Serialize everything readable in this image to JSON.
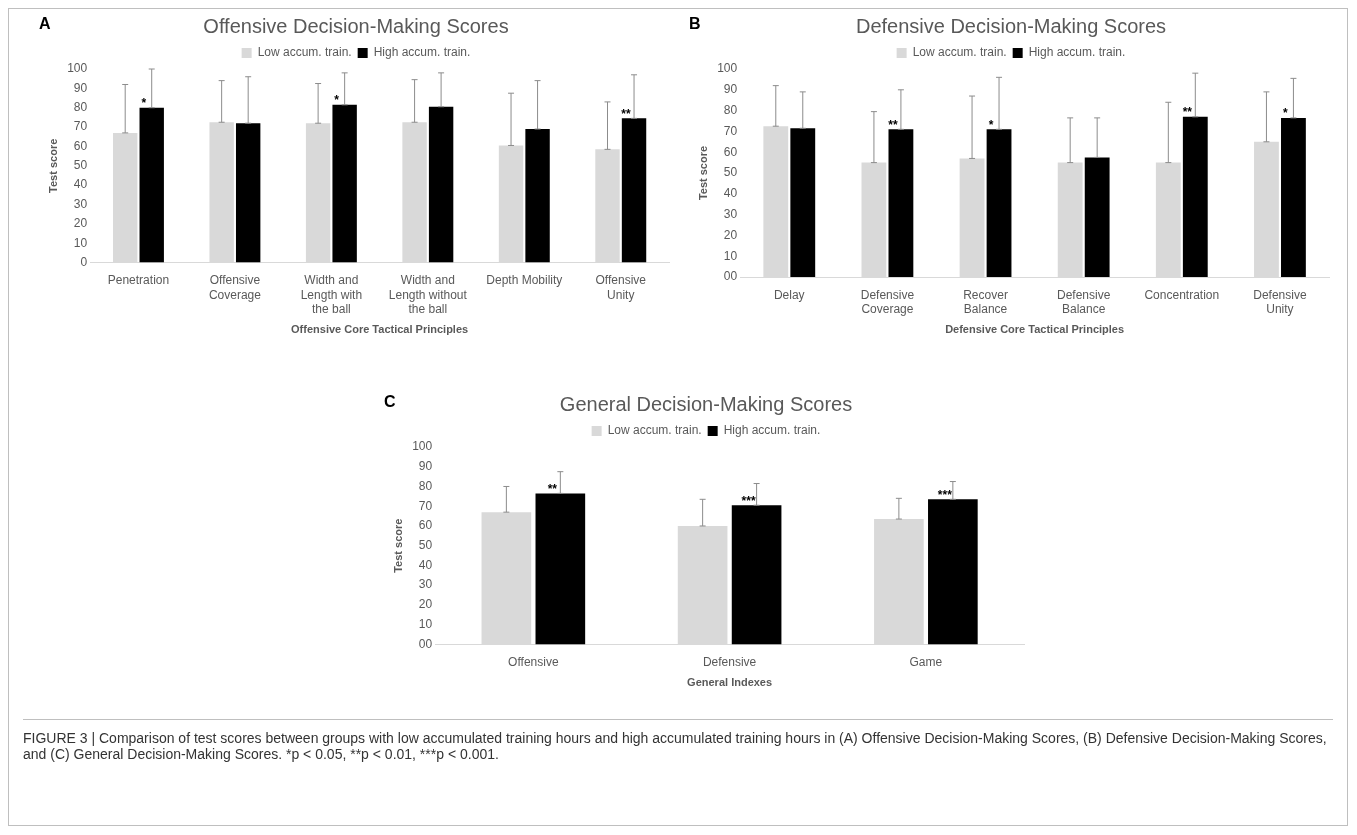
{
  "chart_data": [
    {
      "type": "bar",
      "title": "Offensive Decision-Making Scores",
      "xlabel": "Offensive Core Tactical Principles",
      "ylabel": "Test score",
      "categories": [
        "Penetration",
        "Offensive Coverage",
        "Width and Length with the ball",
        "Width and Length without the ball",
        "Depth Mobility",
        "Offensive Unity"
      ],
      "series": [
        {
          "name": "Low accum. train.",
          "color": "#d9d9d9",
          "values": [
            67,
            72.5,
            72,
            72.5,
            60.5,
            58.5
          ],
          "errors": [
            [
              67,
              92
            ],
            [
              72.5,
              94
            ],
            [
              72,
              92.5
            ],
            [
              72.5,
              94.5
            ],
            [
              60.5,
              87.5
            ],
            [
              58.5,
              83
            ]
          ]
        },
        {
          "name": "High accum. train.",
          "color": "#000000",
          "values": [
            80,
            72,
            81.5,
            80.5,
            69,
            74.5
          ],
          "errors": [
            [
              80,
              100
            ],
            [
              72,
              96
            ],
            [
              81.5,
              98
            ],
            [
              80.5,
              98
            ],
            [
              69,
              94
            ],
            [
              74.5,
              97
            ]
          ]
        }
      ],
      "ylim": [
        0,
        100
      ],
      "yticks": [
        0,
        10,
        20,
        30,
        40,
        50,
        60,
        70,
        80,
        90,
        100
      ],
      "grid": false,
      "legend": "top",
      "annotations": [
        "A",
        {
          "text": "*",
          "x": "Penetration",
          "y": 80
        },
        {
          "text": "*",
          "x": "Width and Length with the ball",
          "y": 81.5
        },
        {
          "text": "**",
          "x": "Offensive Unity",
          "y": 74.5
        }
      ]
    },
    {
      "type": "bar",
      "title": "Defensive Decision-Making Scores",
      "xlabel": "Defensive Core Tactical Principles",
      "ylabel": "Test score",
      "categories": [
        "Delay",
        "Defensive Coverage",
        "Recover Balance",
        "Defensive Balance",
        "Concentration",
        "Defensive Unity"
      ],
      "series": [
        {
          "name": "Low accum. train.",
          "color": "#d9d9d9",
          "values": [
            72.5,
            55,
            57,
            55,
            55,
            65
          ],
          "errors": [
            [
              72.5,
              92
            ],
            [
              55,
              79.5
            ],
            [
              57,
              87
            ],
            [
              55,
              76.5
            ],
            [
              55,
              84
            ],
            [
              65,
              89
            ]
          ]
        },
        {
          "name": "High accum. train.",
          "color": "#000000",
          "values": [
            71.5,
            71,
            71,
            57.5,
            77,
            76.5
          ],
          "errors": [
            [
              71.5,
              89
            ],
            [
              71,
              90
            ],
            [
              71,
              96
            ],
            [
              57.5,
              76.5
            ],
            [
              77,
              98
            ],
            [
              76.5,
              95.5
            ]
          ]
        }
      ],
      "ylim": [
        0,
        100
      ],
      "yticks": [
        {
          "value": 0,
          "label": "00"
        },
        10,
        20,
        30,
        40,
        50,
        60,
        70,
        80,
        90,
        100
      ],
      "grid": false,
      "legend": "top",
      "annotations": [
        "B",
        {
          "text": "**",
          "x": "Defensive Coverage",
          "y": 71
        },
        {
          "text": "*",
          "x": "Recover Balance",
          "y": 71
        },
        {
          "text": "**",
          "x": "Concentration",
          "y": 77
        },
        {
          "text": "*",
          "x": "Defensive Unity",
          "y": 76.5
        }
      ]
    },
    {
      "type": "bar",
      "title": "General Decision-Making Scores",
      "xlabel": "General Indexes",
      "ylabel": "Test score",
      "categories": [
        "Offensive",
        "Defensive",
        "Game"
      ],
      "series": [
        {
          "name": "Low accum. train.",
          "color": "#d9d9d9",
          "values": [
            67,
            60,
            63.5
          ],
          "errors": [
            [
              67,
              80
            ],
            [
              60,
              73.5
            ],
            [
              63.5,
              74
            ]
          ]
        },
        {
          "name": "High accum. train.",
          "color": "#000000",
          "values": [
            76.5,
            70.5,
            73.5
          ],
          "errors": [
            [
              76.5,
              87.5
            ],
            [
              70.5,
              81.5
            ],
            [
              73.5,
              82.5
            ]
          ]
        }
      ],
      "ylim": [
        0,
        100
      ],
      "yticks": [
        {
          "value": 0,
          "label": "00"
        },
        10,
        20,
        30,
        40,
        50,
        60,
        70,
        80,
        90,
        100
      ],
      "grid": false,
      "legend": "top",
      "annotations": [
        "C",
        {
          "text": "**",
          "x": "Offensive",
          "y": 76.5
        },
        {
          "text": "***",
          "x": "Defensive",
          "y": 70.5
        },
        {
          "text": "***",
          "x": "Game",
          "y": 73.5
        },
        "FIGURE 3 | Comparison of test scores between groups with low accumulated training hours and high accumulated training hours in (A) Offensive Decision-Making Scores, (B) Defensive Decision-Making Scores, and (C) General Decision-Making Scores. *p < 0.05, **p < 0.01, ***p < 0.001."
      ]
    }
  ]
}
